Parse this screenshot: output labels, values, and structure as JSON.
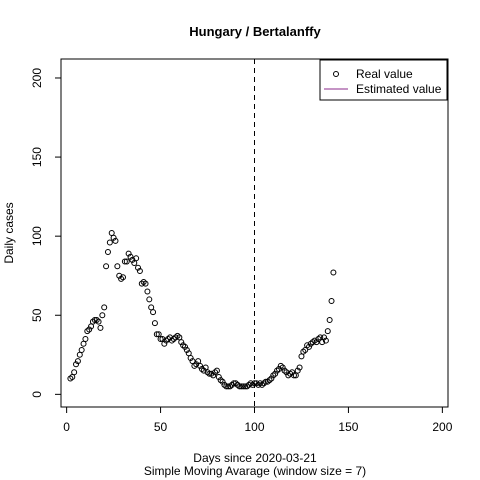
{
  "chart_data": {
    "type": "scatter",
    "title": "Hungary / Bertalanffy",
    "xlabel": "Days since 2020-03-21",
    "subtitle": "Simple Moving Avarage (window size = 7)",
    "ylabel": "Daily cases",
    "xlim": [
      -3,
      203
    ],
    "ylim": [
      -8,
      212
    ],
    "x_ticks": [
      0,
      50,
      100,
      150,
      200
    ],
    "y_ticks": [
      0,
      50,
      100,
      150,
      200
    ],
    "vline": {
      "x": 100,
      "style": "dashed"
    },
    "legend": {
      "position": "top-right",
      "entries": [
        {
          "label": "Real value",
          "symbol": "open-circle",
          "color": "#000000"
        },
        {
          "label": "Estimated value",
          "symbol": "line",
          "color": "#8b2a8b"
        }
      ]
    },
    "series": [
      {
        "name": "Real value",
        "marker": "open-circle",
        "points": [
          [
            2,
            10
          ],
          [
            3,
            11
          ],
          [
            4,
            14
          ],
          [
            5,
            19
          ],
          [
            6,
            21
          ],
          [
            7,
            25
          ],
          [
            8,
            28
          ],
          [
            9,
            32
          ],
          [
            10,
            35
          ],
          [
            11,
            40
          ],
          [
            12,
            41
          ],
          [
            13,
            43
          ],
          [
            14,
            46
          ],
          [
            15,
            47
          ],
          [
            16,
            47
          ],
          [
            17,
            46
          ],
          [
            18,
            42
          ],
          [
            19,
            50
          ],
          [
            20,
            55
          ],
          [
            21,
            81
          ],
          [
            22,
            90
          ],
          [
            23,
            96
          ],
          [
            24,
            102
          ],
          [
            25,
            99
          ],
          [
            26,
            97
          ],
          [
            27,
            81
          ],
          [
            28,
            75
          ],
          [
            29,
            73
          ],
          [
            30,
            74
          ],
          [
            31,
            84
          ],
          [
            32,
            84
          ],
          [
            33,
            89
          ],
          [
            34,
            87
          ],
          [
            35,
            85
          ],
          [
            36,
            83
          ],
          [
            37,
            86
          ],
          [
            38,
            80
          ],
          [
            39,
            78
          ],
          [
            40,
            70
          ],
          [
            41,
            71
          ],
          [
            42,
            70
          ],
          [
            43,
            65
          ],
          [
            44,
            60
          ],
          [
            45,
            55
          ],
          [
            46,
            52
          ],
          [
            47,
            45
          ],
          [
            48,
            38
          ],
          [
            49,
            38
          ],
          [
            50,
            35
          ],
          [
            51,
            35
          ],
          [
            52,
            32
          ],
          [
            53,
            34
          ],
          [
            54,
            35
          ],
          [
            55,
            36
          ],
          [
            56,
            34
          ],
          [
            57,
            35
          ],
          [
            58,
            36
          ],
          [
            59,
            37
          ],
          [
            60,
            36
          ],
          [
            61,
            33
          ],
          [
            62,
            31
          ],
          [
            63,
            30
          ],
          [
            64,
            28
          ],
          [
            65,
            26
          ],
          [
            66,
            23
          ],
          [
            67,
            21
          ],
          [
            68,
            18
          ],
          [
            69,
            19
          ],
          [
            70,
            21
          ],
          [
            71,
            18
          ],
          [
            72,
            16
          ],
          [
            73,
            15
          ],
          [
            74,
            17
          ],
          [
            75,
            14
          ],
          [
            76,
            13
          ],
          [
            77,
            13
          ],
          [
            78,
            12
          ],
          [
            79,
            14
          ],
          [
            80,
            15
          ],
          [
            81,
            11
          ],
          [
            82,
            9
          ],
          [
            83,
            8
          ],
          [
            84,
            6
          ],
          [
            85,
            5
          ],
          [
            86,
            5
          ],
          [
            87,
            5
          ],
          [
            88,
            6
          ],
          [
            89,
            7
          ],
          [
            90,
            7
          ],
          [
            91,
            6
          ],
          [
            92,
            5
          ],
          [
            93,
            5
          ],
          [
            94,
            5
          ],
          [
            95,
            5
          ],
          [
            96,
            5
          ],
          [
            97,
            6
          ],
          [
            98,
            7
          ],
          [
            99,
            6
          ],
          [
            100,
            7
          ],
          [
            101,
            7
          ],
          [
            102,
            6
          ],
          [
            103,
            7
          ],
          [
            104,
            6
          ],
          [
            105,
            7
          ],
          [
            106,
            8
          ],
          [
            107,
            8
          ],
          [
            108,
            9
          ],
          [
            109,
            10
          ],
          [
            110,
            12
          ],
          [
            111,
            13
          ],
          [
            112,
            15
          ],
          [
            113,
            16
          ],
          [
            114,
            18
          ],
          [
            115,
            17
          ],
          [
            116,
            15
          ],
          [
            117,
            14
          ],
          [
            118,
            12
          ],
          [
            119,
            13
          ],
          [
            120,
            14
          ],
          [
            121,
            12
          ],
          [
            122,
            12
          ],
          [
            123,
            15
          ],
          [
            124,
            17
          ],
          [
            125,
            24
          ],
          [
            126,
            27
          ],
          [
            127,
            28
          ],
          [
            128,
            31
          ],
          [
            129,
            30
          ],
          [
            130,
            32
          ],
          [
            131,
            33
          ],
          [
            132,
            34
          ],
          [
            133,
            33
          ],
          [
            134,
            35
          ],
          [
            135,
            36
          ],
          [
            136,
            33
          ],
          [
            137,
            36
          ],
          [
            138,
            34
          ],
          [
            139,
            40
          ],
          [
            140,
            47
          ],
          [
            141,
            59
          ],
          [
            142,
            77
          ]
        ]
      }
    ]
  }
}
